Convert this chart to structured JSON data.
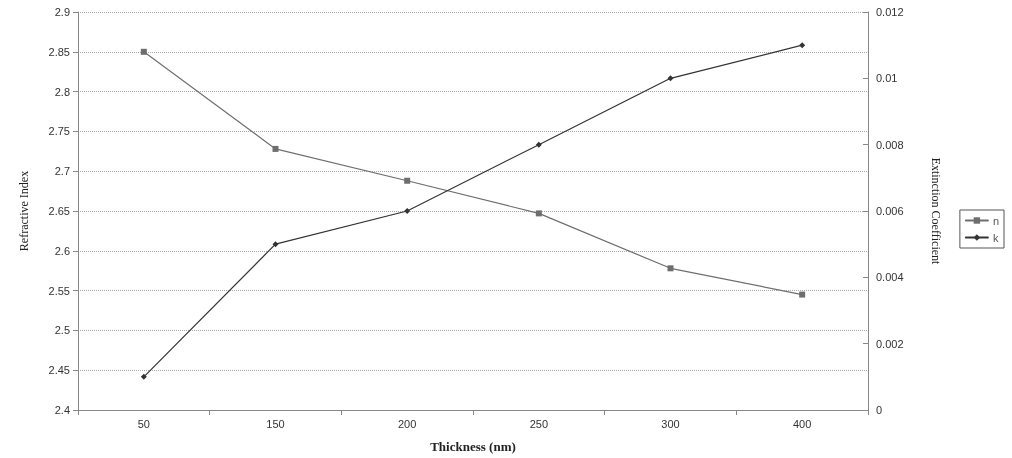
{
  "chart_data": {
    "type": "line",
    "xlabel": "Thickness (nm)",
    "ylabel": "Refractive Index",
    "y2label": "Extinction Coefficient",
    "categories": [
      "50",
      "150",
      "200",
      "250",
      "300",
      "400"
    ],
    "series": [
      {
        "name": "n",
        "color": "#6e6e6e",
        "marker": "square",
        "values": [
          2.85,
          2.728,
          2.688,
          2.647,
          2.578,
          2.545
        ]
      },
      {
        "name": "k",
        "color": "#333333",
        "marker": "diamond",
        "axis": "y2",
        "values": [
          0.001,
          0.005,
          0.006,
          0.008,
          0.01,
          0.011
        ]
      }
    ],
    "ylim": [
      2.4,
      2.9
    ],
    "yticks": [
      2.4,
      2.45,
      2.5,
      2.55,
      2.6,
      2.65,
      2.7,
      2.75,
      2.8,
      2.85,
      2.9
    ],
    "y2lim": [
      0,
      0.012
    ],
    "y2ticks": [
      0,
      0.002,
      0.004,
      0.006,
      0.008,
      0.01,
      0.012
    ],
    "grid": "y",
    "legend": "right",
    "line_style": "solid"
  }
}
